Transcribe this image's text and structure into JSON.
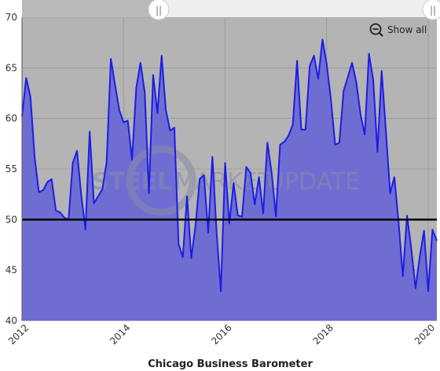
{
  "chart_data": {
    "type": "area",
    "title": "Chicago Business Barometer",
    "xlabel": "",
    "ylabel": "",
    "ylim": [
      40,
      70
    ],
    "xlim": [
      2012.0,
      2020.17
    ],
    "yticks": [
      40,
      45,
      50,
      55,
      60,
      65,
      70
    ],
    "xticks": [
      2012,
      2014,
      2016,
      2018,
      2020
    ],
    "reference_line": 50,
    "grid": true,
    "series": [
      {
        "x": [
          2012.0,
          2012.083,
          2012.167,
          2012.25,
          2012.333,
          2012.417,
          2012.5,
          2012.583,
          2012.667,
          2012.75,
          2012.833,
          2012.917,
          2013.0,
          2013.083,
          2013.167,
          2013.25,
          2013.333,
          2013.417,
          2013.5,
          2013.583,
          2013.667,
          2013.75,
          2013.833,
          2013.917,
          2014.0,
          2014.083,
          2014.167,
          2014.25,
          2014.333,
          2014.417,
          2014.5,
          2014.583,
          2014.667,
          2014.75,
          2014.833,
          2014.917,
          2015.0,
          2015.083,
          2015.167,
          2015.25,
          2015.333,
          2015.417,
          2015.5,
          2015.583,
          2015.667,
          2015.75,
          2015.833,
          2015.917,
          2016.0,
          2016.083,
          2016.167,
          2016.25,
          2016.333,
          2016.417,
          2016.5,
          2016.583,
          2016.667,
          2016.75,
          2016.833,
          2016.917,
          2017.0,
          2017.083,
          2017.167,
          2017.25,
          2017.333,
          2017.417,
          2017.5,
          2017.583,
          2017.667,
          2017.75,
          2017.833,
          2017.917,
          2018.0,
          2018.083,
          2018.167,
          2018.25,
          2018.333,
          2018.417,
          2018.5,
          2018.583,
          2018.667,
          2018.75,
          2018.833,
          2018.917,
          2019.0,
          2019.083,
          2019.167,
          2019.25,
          2019.333,
          2019.417,
          2019.5,
          2019.583,
          2019.667,
          2019.75,
          2019.833,
          2019.917,
          2020.0,
          2020.083,
          2020.17
        ],
        "values": [
          60.2,
          64.0,
          62.1,
          56.1,
          52.7,
          52.9,
          53.7,
          54.0,
          50.9,
          50.7,
          50.2,
          50.0,
          55.6,
          56.8,
          52.4,
          49.0,
          58.7,
          51.6,
          52.3,
          53.0,
          55.7,
          65.9,
          63.3,
          60.8,
          59.6,
          59.8,
          55.9,
          63.0,
          65.5,
          62.6,
          52.6,
          64.3,
          60.5,
          66.2,
          60.8,
          58.8,
          59.1,
          47.6,
          46.3,
          52.3,
          46.2,
          49.4,
          54.0,
          54.4,
          48.7,
          56.2,
          48.7,
          42.9,
          55.6,
          49.6,
          53.6,
          50.4,
          50.3,
          55.2,
          54.6,
          51.5,
          54.2,
          50.6,
          57.6,
          54.6,
          50.3,
          57.4,
          57.7,
          58.3,
          59.4,
          65.7,
          58.9,
          58.9,
          65.2,
          66.2,
          63.9,
          67.8,
          65.4,
          61.9,
          57.4,
          57.6,
          62.7,
          64.1,
          65.5,
          63.6,
          60.4,
          58.4,
          66.4,
          63.8,
          56.7,
          64.7,
          58.7,
          52.6,
          54.2,
          49.7,
          44.4,
          50.4,
          47.1,
          43.2,
          46.3,
          48.9,
          42.9,
          49.0,
          47.9
        ]
      }
    ],
    "colors": {
      "line": "#1c1ce6",
      "fill": "#6e6ed2",
      "plot_bg": "#b4b4b4",
      "reference": "#000000"
    }
  },
  "toolbar": {
    "show_all_label": "Show all",
    "slider_handle_glyph": "||"
  },
  "watermark": {
    "part1": "STEEL",
    "part2": "MARKET",
    "part3": "UPDATE"
  }
}
